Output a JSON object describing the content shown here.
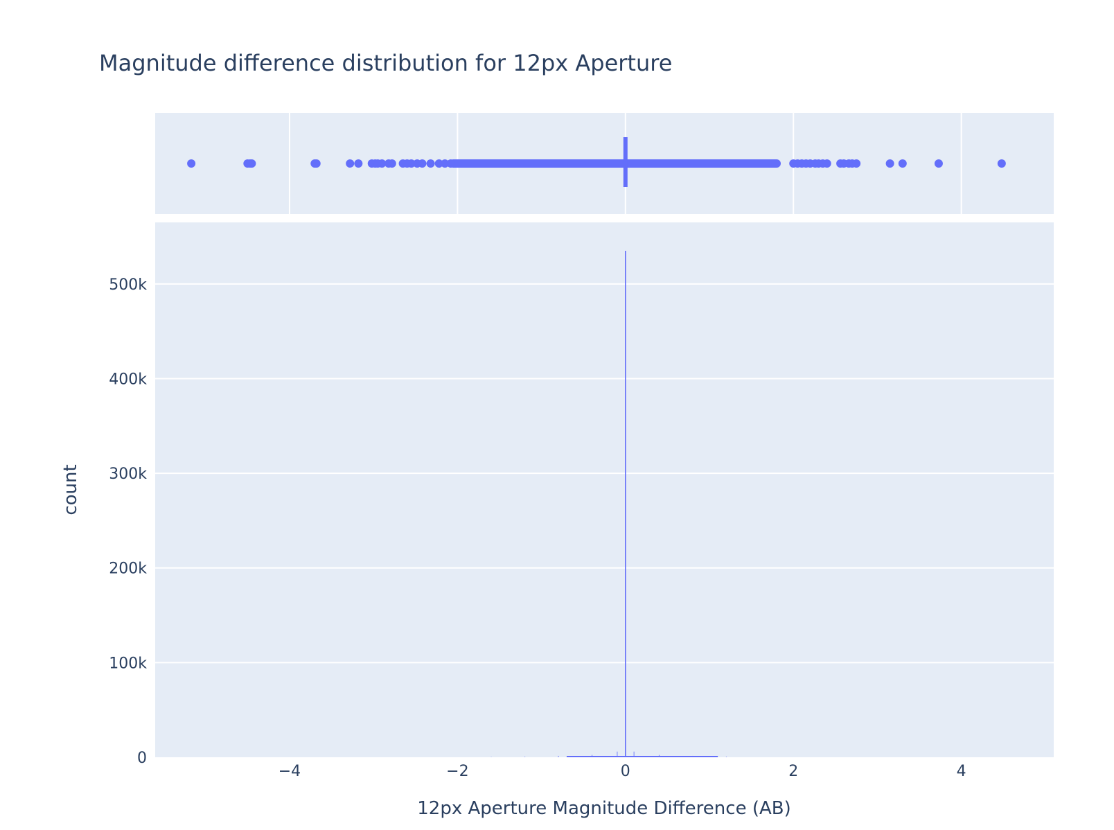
{
  "chart_data": {
    "type": "histogram",
    "title": "Magnitude difference distribution for 12px Aperture",
    "xlabel": "12px Aperture Magnitude Difference (AB)",
    "ylabel": "count",
    "xlim": [
      -5.6,
      5.1
    ],
    "ylim": [
      0,
      565000
    ],
    "x_ticks": [
      -4,
      -2,
      0,
      2,
      4
    ],
    "x_tick_labels": [
      "−4",
      "−2",
      "0",
      "2",
      "4"
    ],
    "y_ticks": [
      0,
      100000,
      200000,
      300000,
      400000,
      500000
    ],
    "y_tick_labels": [
      "0",
      "100k",
      "200k",
      "300k",
      "400k",
      "500k"
    ],
    "grid": true,
    "colors": {
      "series": "#636efa",
      "plot_bg": "#e5ecf6",
      "grid": "#ffffff",
      "text": "#2a3f5f"
    },
    "histogram": {
      "peak_x": 0.0,
      "peak_count": 535000,
      "bins": [
        {
          "x": -1.6,
          "count": 300
        },
        {
          "x": -1.2,
          "count": 600
        },
        {
          "x": -0.8,
          "count": 1500
        },
        {
          "x": -0.4,
          "count": 2500
        },
        {
          "x": -0.1,
          "count": 6000
        },
        {
          "x": 0.0,
          "count": 535000
        },
        {
          "x": 0.1,
          "count": 6000
        },
        {
          "x": 0.4,
          "count": 2500
        },
        {
          "x": 0.8,
          "count": 1500
        },
        {
          "x": 1.2,
          "count": 600
        }
      ]
    },
    "marginal": {
      "type": "strip",
      "points": [
        -5.17,
        -4.5,
        -4.47,
        -4.45,
        -3.7,
        -3.68,
        -3.28,
        -3.18,
        -3.02,
        -2.98,
        -2.95,
        -2.9,
        -2.82,
        -2.78,
        -2.65,
        -2.6,
        -2.55,
        -2.48,
        -2.42,
        -2.32,
        -2.22,
        -2.15,
        -2.08,
        2.0,
        2.05,
        2.1,
        2.15,
        2.2,
        2.26,
        2.3,
        2.35,
        2.4,
        2.56,
        2.6,
        2.66,
        2.7,
        2.75,
        3.15,
        3.3,
        3.73,
        4.48
      ],
      "dense_ranges": [
        [
          -2.05,
          1.8
        ]
      ]
    }
  }
}
